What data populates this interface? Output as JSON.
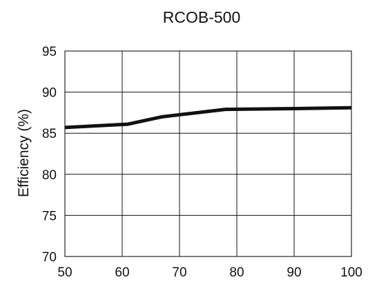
{
  "chart_data": {
    "type": "line",
    "title": "RCOB-500",
    "xlabel": "",
    "ylabel": "Efficiency (%)",
    "xlim": [
      50,
      100
    ],
    "ylim": [
      70,
      95
    ],
    "xticks": [
      50,
      60,
      70,
      80,
      90,
      100
    ],
    "yticks": [
      70,
      75,
      80,
      85,
      90,
      95
    ],
    "grid": true,
    "series": [
      {
        "x": [
          50,
          61,
          67,
          78,
          90,
          100
        ],
        "y": [
          85.7,
          86.1,
          87.0,
          87.9,
          88.0,
          88.1
        ],
        "color": "#111111"
      }
    ]
  }
}
